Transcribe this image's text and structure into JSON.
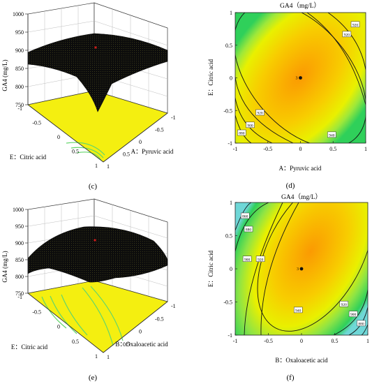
{
  "figure": {
    "colors": {
      "surface": "#0c0c0c",
      "floor": "#f4ef10",
      "contour_line": "#141414",
      "floor_contour": "#63d66a",
      "center_point": "#d11a1a",
      "gradient_center": "#fb9a02",
      "gradient_mid": "#eaf100",
      "gradient_outer": "#2fd05a",
      "gradient_edge": "#6fd7d7"
    }
  },
  "chart_data": [
    {
      "id": "c",
      "panel_label": "(c)",
      "type": "surface3d",
      "zlabel": "GA4 (mg/L)",
      "xlabel": "A：Pyruvic acid",
      "ylabel": "E：Citric acid",
      "zlim": [
        750,
        1000
      ],
      "zticks": [
        "1000",
        "950",
        "900",
        "850",
        "800",
        "750"
      ],
      "xticks": [
        "1",
        "0.5",
        "0",
        "-0.5",
        "-1"
      ],
      "yticks": [
        "-1",
        "-0.5",
        "0",
        "0.5",
        "1"
      ],
      "peak": {
        "x": 0,
        "y": 0,
        "z": 955
      }
    },
    {
      "id": "d",
      "panel_label": "(d)",
      "type": "contour",
      "title": "GA4（mg/L）",
      "xlabel": "A：Pyruvic acid",
      "ylabel": "E：Citric acid",
      "xlim": [
        -1,
        1
      ],
      "ylim": [
        -1,
        1
      ],
      "xticks": [
        "-1",
        "-0.5",
        "0",
        "0.5",
        "1"
      ],
      "yticks": [
        "-1",
        "-0.5",
        "0",
        "0.5",
        "1"
      ],
      "center": {
        "x": 0,
        "y": 0,
        "label": "3"
      },
      "contour_labels": [
        {
          "text": "920",
          "x": 0.84,
          "y": 0.82
        },
        {
          "text": "920",
          "x": 0.71,
          "y": 0.67
        },
        {
          "text": "940",
          "x": 0.48,
          "y": -0.87
        },
        {
          "text": "920",
          "x": -0.62,
          "y": -0.53
        },
        {
          "text": "900",
          "x": -0.77,
          "y": -0.72
        },
        {
          "text": "880",
          "x": -0.9,
          "y": -0.84
        }
      ]
    },
    {
      "id": "e",
      "panel_label": "(e)",
      "type": "surface3d",
      "zlabel": "GA4 (mg/L)",
      "xlabel": "B：Oxaloacetic acid",
      "ylabel": "E：Citric acid",
      "zlim": [
        750,
        1000
      ],
      "zticks": [
        "1000",
        "950",
        "900",
        "850",
        "800",
        "750"
      ],
      "xticks": [
        "1",
        "0.5",
        "0",
        "-0.5",
        "-1"
      ],
      "yticks": [
        "-1",
        "-0.5",
        "0",
        "0.5",
        "1"
      ],
      "peak": {
        "x": 0,
        "y": 0,
        "z": 940
      }
    },
    {
      "id": "f",
      "panel_label": "(f)",
      "type": "contour",
      "title": "GA4（mg/L）",
      "xlabel": "B：Oxaloacetic acid",
      "ylabel": "E：Citric acid",
      "xlim": [
        -1,
        1
      ],
      "ylim": [
        -1,
        1
      ],
      "xticks": [
        "-1",
        "-0.5",
        "0",
        "0.5",
        "1"
      ],
      "yticks": [
        "-1",
        "-0.5",
        "0",
        "0.5",
        "1"
      ],
      "center": {
        "x": 0,
        "y": 0,
        "label": "3"
      },
      "contour_labels": [
        {
          "text": "860",
          "x": -0.85,
          "y": 0.8
        },
        {
          "text": "880",
          "x": -0.8,
          "y": 0.6
        },
        {
          "text": "900",
          "x": -0.82,
          "y": 0.15
        },
        {
          "text": "920",
          "x": -0.62,
          "y": 0.15
        },
        {
          "text": "940",
          "x": -0.05,
          "y": -0.62
        },
        {
          "text": "920",
          "x": 0.64,
          "y": -0.53
        },
        {
          "text": "900",
          "x": 0.78,
          "y": -0.68
        },
        {
          "text": "880",
          "x": 0.9,
          "y": -0.82
        }
      ]
    }
  ]
}
